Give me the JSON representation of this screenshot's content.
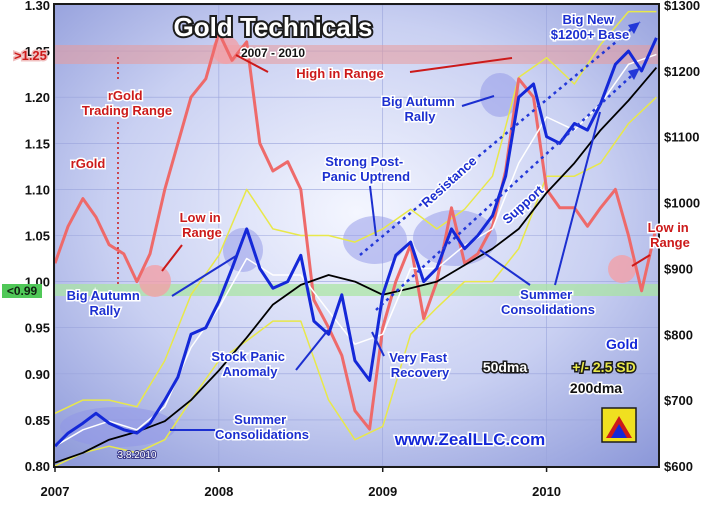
{
  "chart_data": {
    "type": "line",
    "title": "Gold Technicals",
    "subtitle": "2007 - 2010",
    "watermark": "www.ZealLLC.com",
    "date_label": "3.8.2010",
    "x_ticks": [
      "2007",
      "2008",
      "2009",
      "2010"
    ],
    "y_left": {
      "label": "rGold",
      "ticks": [
        "0.80",
        "0.85",
        "0.90",
        "0.95",
        "1.00",
        "1.05",
        "1.10",
        "1.15",
        "1.20",
        "1.25",
        "1.30"
      ],
      "range": [
        0.8,
        1.3
      ]
    },
    "y_right": {
      "ticks": [
        "$600",
        "$700",
        "$800",
        "$900",
        "$1000",
        "$1100",
        "$1200",
        "$1300"
      ],
      "range": [
        600,
        1300
      ]
    },
    "markers": {
      "high": ">1.25",
      "low": "<0.99"
    },
    "colors": {
      "gold": "#1428d8",
      "rgold": "#ee6a6a",
      "band": "#e8e84a",
      "dma50": "#ffffff",
      "dma200": "#000000",
      "accent": "#cc1a1a"
    },
    "legend": {
      "gold": "Gold",
      "dma50": "50dma",
      "sd": "+/- 2.5 SD",
      "dma200": "200dma"
    },
    "annotations": {
      "rgold_range": "rGold Trading Range",
      "rgold": "rGold",
      "high": "High in Range",
      "low_left": "Low in Range",
      "low_right": "Low in Range",
      "big_autumn_left": "Big Autumn Rally",
      "big_autumn_right": "Big Autumn Rally",
      "stock_panic": "Stock Panic Anomaly",
      "summer_left": "Summer Consolidations",
      "summer_right": "Summer Consolidations",
      "strong_post_panic": "Strong Post-Panic Uptrend",
      "very_fast": "Very Fast Recovery",
      "big_new_base": "Big New $1200+ Base",
      "resistance": "Resistance",
      "support": "Support"
    },
    "series": [
      {
        "name": "Gold",
        "axis": "right",
        "x": [
          2007.0,
          2007.08,
          2007.17,
          2007.25,
          2007.33,
          2007.42,
          2007.5,
          2007.58,
          2007.67,
          2007.75,
          2007.83,
          2007.92,
          2008.0,
          2008.08,
          2008.17,
          2008.25,
          2008.33,
          2008.42,
          2008.5,
          2008.58,
          2008.67,
          2008.75,
          2008.83,
          2008.92,
          2009.0,
          2009.08,
          2009.17,
          2009.25,
          2009.33,
          2009.42,
          2009.5,
          2009.58,
          2009.67,
          2009.75,
          2009.83,
          2009.92,
          2010.0,
          2010.08,
          2010.17,
          2010.25,
          2010.33,
          2010.42,
          2010.5,
          2010.58,
          2010.67
        ],
        "values": [
          630,
          650,
          665,
          680,
          665,
          655,
          650,
          665,
          700,
          735,
          800,
          810,
          850,
          900,
          960,
          900,
          870,
          880,
          920,
          820,
          800,
          860,
          760,
          730,
          860,
          920,
          940,
          880,
          900,
          960,
          930,
          950,
          980,
          1040,
          1160,
          1180,
          1100,
          1090,
          1120,
          1110,
          1150,
          1210,
          1230,
          1200,
          1250
        ]
      },
      {
        "name": "rGold",
        "axis": "left",
        "x": [
          2007.0,
          2007.08,
          2007.17,
          2007.25,
          2007.33,
          2007.42,
          2007.5,
          2007.58,
          2007.67,
          2007.75,
          2007.83,
          2007.92,
          2008.0,
          2008.08,
          2008.17,
          2008.25,
          2008.33,
          2008.42,
          2008.5,
          2008.58,
          2008.67,
          2008.75,
          2008.83,
          2008.92,
          2009.0,
          2009.08,
          2009.17,
          2009.25,
          2009.33,
          2009.42,
          2009.5,
          2009.58,
          2009.67,
          2009.75,
          2009.83,
          2009.92,
          2010.0,
          2010.08,
          2010.17,
          2010.25,
          2010.33,
          2010.42,
          2010.5,
          2010.58,
          2010.67
        ],
        "values": [
          1.02,
          1.06,
          1.09,
          1.07,
          1.04,
          1.03,
          1.0,
          1.03,
          1.1,
          1.15,
          1.2,
          1.22,
          1.27,
          1.24,
          1.26,
          1.15,
          1.12,
          1.13,
          1.1,
          0.98,
          0.95,
          0.92,
          0.86,
          0.84,
          0.95,
          1.0,
          1.04,
          0.96,
          1.0,
          1.08,
          1.02,
          1.03,
          1.06,
          1.12,
          1.22,
          1.2,
          1.1,
          1.08,
          1.08,
          1.06,
          1.08,
          1.1,
          1.05,
          0.99,
          1.06
        ]
      },
      {
        "name": "200dma",
        "axis": "right",
        "x": [
          2007.0,
          2007.17,
          2007.33,
          2007.5,
          2007.67,
          2007.83,
          2008.0,
          2008.17,
          2008.33,
          2008.5,
          2008.67,
          2008.83,
          2009.0,
          2009.17,
          2009.33,
          2009.5,
          2009.67,
          2009.83,
          2010.0,
          2010.17,
          2010.33,
          2010.5,
          2010.67
        ],
        "values": [
          605,
          620,
          640,
          652,
          668,
          700,
          745,
          795,
          845,
          875,
          890,
          880,
          860,
          870,
          880,
          905,
          930,
          960,
          1015,
          1060,
          1110,
          1155,
          1205
        ]
      },
      {
        "name": "50dma",
        "axis": "right",
        "x": [
          2007.0,
          2007.17,
          2007.33,
          2007.5,
          2007.67,
          2007.83,
          2008.0,
          2008.17,
          2008.33,
          2008.5,
          2008.67,
          2008.83,
          2009.0,
          2009.17,
          2009.33,
          2009.5,
          2009.67,
          2009.83,
          2010.0,
          2010.17,
          2010.33,
          2010.5,
          2010.67
        ],
        "values": [
          630,
          655,
          668,
          655,
          690,
          780,
          840,
          915,
          890,
          890,
          835,
          785,
          800,
          900,
          900,
          935,
          960,
          1060,
          1130,
          1110,
          1150,
          1210,
          1225
        ]
      },
      {
        "name": "+2.5 SD",
        "axis": "right",
        "x": [
          2007.0,
          2007.17,
          2007.33,
          2007.5,
          2007.67,
          2007.83,
          2008.0,
          2008.17,
          2008.33,
          2008.5,
          2008.67,
          2008.83,
          2009.0,
          2009.17,
          2009.33,
          2009.5,
          2009.67,
          2009.83,
          2010.0,
          2010.17,
          2010.33,
          2010.5,
          2010.67
        ],
        "values": [
          680,
          700,
          700,
          690,
          760,
          860,
          920,
          1020,
          960,
          950,
          950,
          940,
          960,
          990,
          960,
          990,
          1040,
          1190,
          1220,
          1180,
          1240,
          1290,
          1290
        ]
      },
      {
        "name": "-2.5 SD",
        "axis": "right",
        "x": [
          2007.0,
          2007.17,
          2007.33,
          2007.5,
          2007.67,
          2007.83,
          2008.0,
          2008.17,
          2008.33,
          2008.5,
          2008.67,
          2008.83,
          2009.0,
          2009.17,
          2009.33,
          2009.5,
          2009.67,
          2009.83,
          2010.0,
          2010.17,
          2010.33,
          2010.5,
          2010.67
        ],
        "values": [
          600,
          620,
          630,
          620,
          640,
          700,
          760,
          790,
          820,
          820,
          700,
          640,
          660,
          800,
          840,
          880,
          880,
          930,
          1040,
          1040,
          1060,
          1120,
          1160
        ]
      }
    ]
  }
}
